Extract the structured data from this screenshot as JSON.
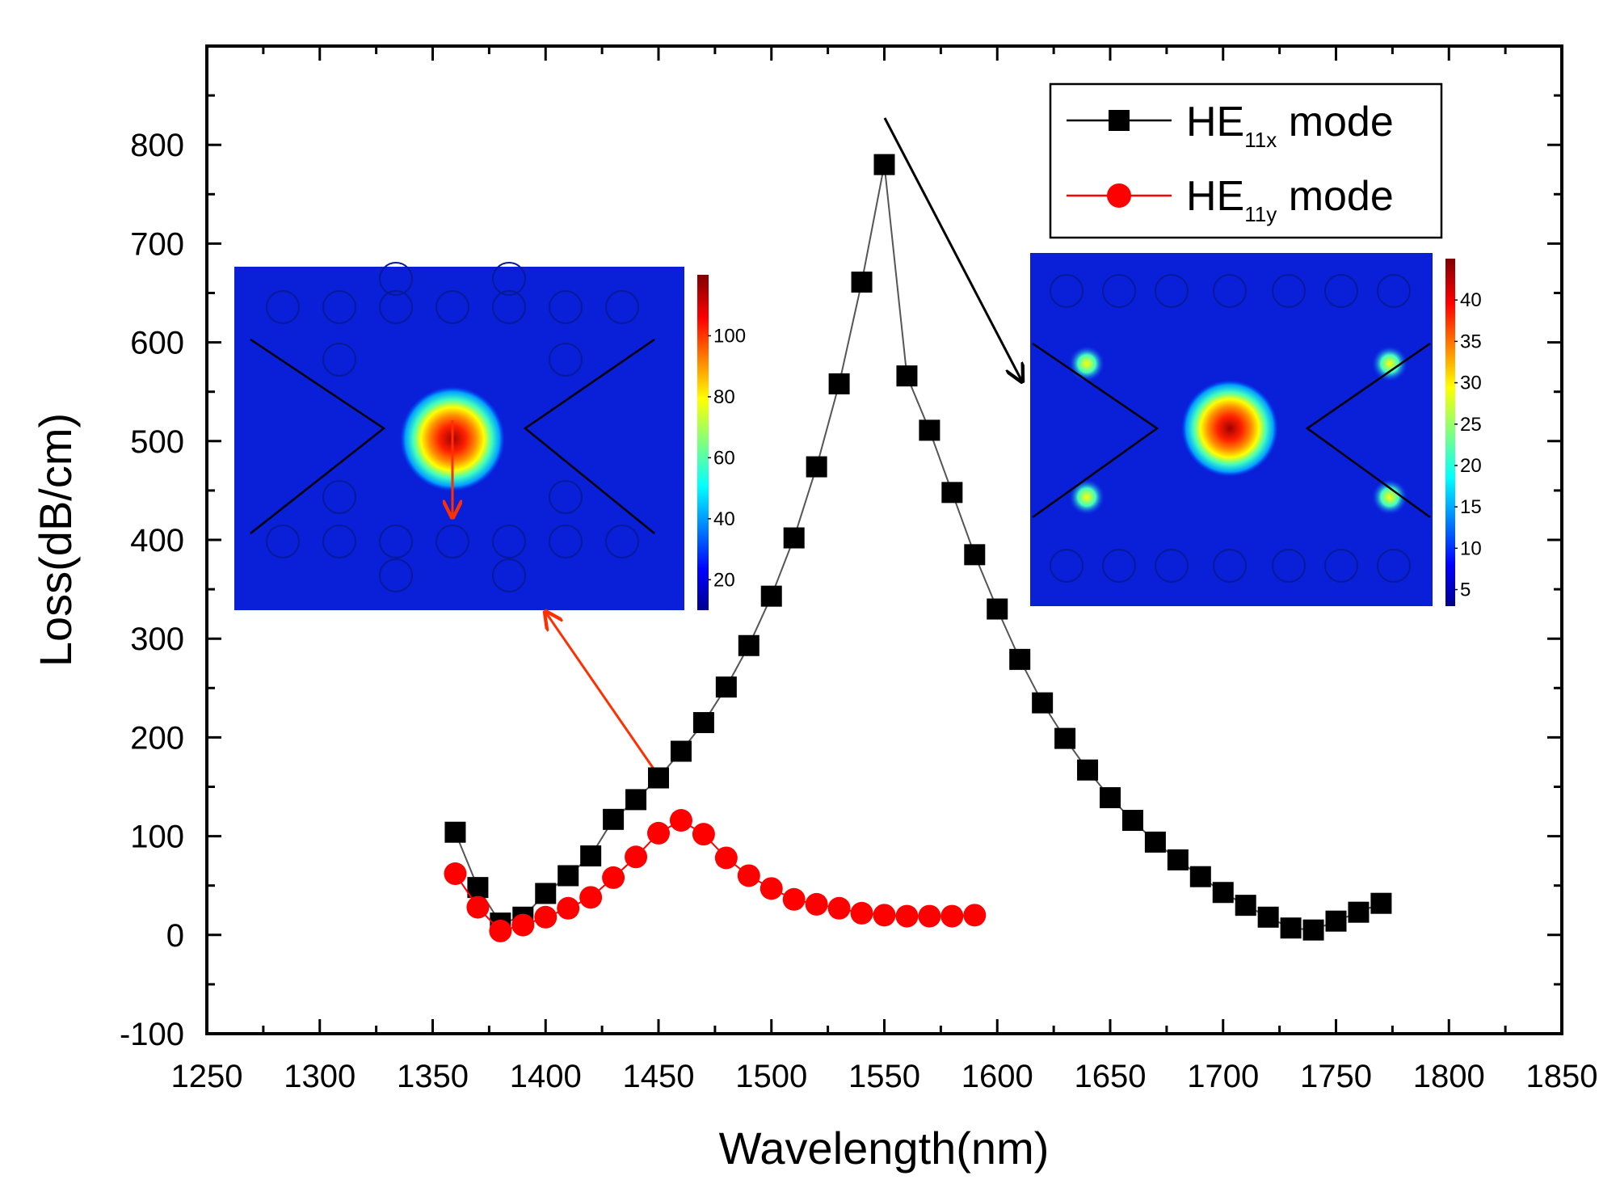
{
  "chart_data": {
    "type": "line",
    "title": "",
    "xlabel": "Wavelength(nm)",
    "ylabel": "Loss(dB/cm)",
    "xlim": [
      1250,
      1850
    ],
    "ylim": [
      -100,
      900
    ],
    "xticks": [
      1250,
      1300,
      1350,
      1400,
      1450,
      1500,
      1550,
      1600,
      1650,
      1700,
      1750,
      1800,
      1850
    ],
    "yticks": [
      -100,
      0,
      100,
      200,
      300,
      400,
      500,
      600,
      700,
      800
    ],
    "legend_position": "top-right",
    "series": [
      {
        "name": "HE11x mode",
        "legend_main": "HE",
        "legend_sub": "11x",
        "legend_suffix": " mode",
        "color": "#000000",
        "marker": "square",
        "x": [
          1360,
          1370,
          1380,
          1390,
          1400,
          1410,
          1420,
          1430,
          1440,
          1450,
          1460,
          1470,
          1480,
          1490,
          1500,
          1510,
          1520,
          1530,
          1540,
          1550,
          1560,
          1570,
          1580,
          1590,
          1600,
          1610,
          1620,
          1630,
          1640,
          1650,
          1660,
          1670,
          1680,
          1690,
          1700,
          1710,
          1720,
          1730,
          1740,
          1750,
          1760,
          1770
        ],
        "y": [
          104,
          48,
          12,
          18,
          42,
          60,
          80,
          117,
          137,
          159,
          186,
          215,
          251,
          293,
          343,
          402,
          474,
          558,
          661,
          780,
          566,
          511,
          448,
          385,
          330,
          279,
          235,
          199,
          167,
          139,
          116,
          94,
          76,
          59,
          43,
          30,
          18,
          7,
          5,
          14,
          23,
          32
        ]
      },
      {
        "name": "HE11y mode",
        "legend_main": "HE",
        "legend_sub": "11y",
        "legend_suffix": " mode",
        "color": "#ff0000",
        "marker": "circle",
        "x": [
          1360,
          1370,
          1380,
          1390,
          1400,
          1410,
          1420,
          1430,
          1440,
          1450,
          1460,
          1470,
          1480,
          1490,
          1500,
          1510,
          1520,
          1530,
          1540,
          1550,
          1560,
          1570,
          1580,
          1590
        ],
        "y": [
          62,
          28,
          4,
          10,
          18,
          27,
          38,
          58,
          79,
          103,
          116,
          102,
          78,
          60,
          47,
          36,
          31,
          27,
          22,
          20,
          19,
          19,
          19,
          20
        ]
      }
    ],
    "insets": [
      {
        "name": "HE11y mode field",
        "colorbar_ticks": [
          "20",
          "40",
          "60",
          "80",
          "100"
        ],
        "colorbar_range": [
          10,
          120
        ]
      },
      {
        "name": "HE11x mode field",
        "colorbar_ticks": [
          "5",
          "10",
          "15",
          "20",
          "25",
          "30",
          "35",
          "40"
        ],
        "colorbar_range": [
          3,
          45
        ]
      }
    ]
  }
}
